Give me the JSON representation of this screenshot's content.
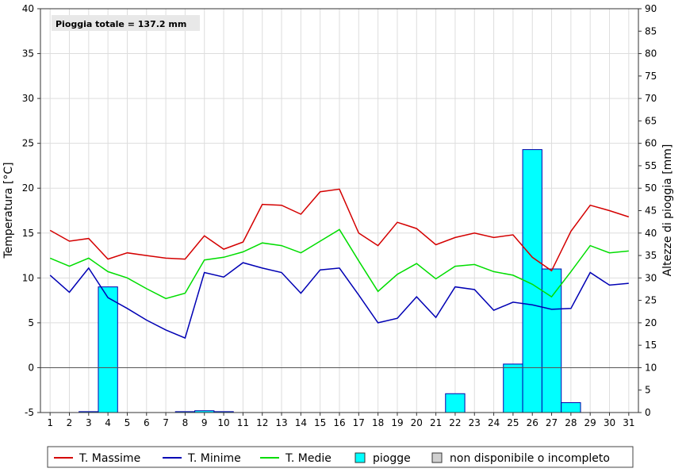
{
  "chart_data": {
    "type": "line",
    "x": [
      1,
      2,
      3,
      4,
      5,
      6,
      7,
      8,
      9,
      10,
      11,
      12,
      13,
      14,
      15,
      16,
      17,
      18,
      19,
      20,
      21,
      22,
      23,
      24,
      25,
      26,
      27,
      28,
      29,
      30,
      31
    ],
    "annotation": "Pioggia totale = 137.2 mm",
    "y_left": {
      "label": "Temperatura [°C]",
      "min": -5,
      "max": 40,
      "step": 5
    },
    "y_right": {
      "label": "Altezze di pioggia [mm]",
      "min": 0,
      "max": 90,
      "step": 5
    },
    "grid": true,
    "legend_position": "bottom",
    "series": [
      {
        "name": "T. Massime",
        "color": "#d40000",
        "axis": "left",
        "values": [
          15.3,
          14.1,
          14.4,
          12.1,
          12.8,
          12.5,
          12.2,
          12.1,
          14.7,
          13.2,
          14.0,
          18.2,
          18.1,
          17.1,
          19.6,
          19.9,
          15.0,
          13.6,
          16.2,
          15.5,
          13.7,
          14.5,
          15.0,
          14.5,
          14.8,
          12.3,
          10.8,
          15.2,
          18.1,
          17.5,
          16.8
        ]
      },
      {
        "name": "T. Minime",
        "color": "#0000b4",
        "axis": "left",
        "values": [
          10.3,
          8.4,
          11.1,
          7.8,
          6.6,
          5.3,
          4.2,
          3.3,
          10.6,
          10.1,
          11.7,
          11.1,
          10.6,
          8.3,
          10.9,
          11.1,
          8.1,
          5.0,
          5.5,
          7.9,
          5.6,
          9.0,
          8.7,
          6.4,
          7.3,
          7.0,
          6.5,
          6.6,
          10.6,
          9.2,
          9.4
        ]
      },
      {
        "name": "T. Medie",
        "color": "#00dd00",
        "axis": "left",
        "values": [
          12.2,
          11.3,
          12.2,
          10.7,
          10.0,
          8.8,
          7.7,
          8.3,
          12.0,
          12.3,
          12.9,
          13.9,
          13.6,
          12.8,
          14.1,
          15.4,
          11.9,
          8.5,
          10.4,
          11.6,
          9.9,
          11.3,
          11.5,
          10.7,
          10.3,
          9.3,
          7.9,
          10.7,
          13.6,
          12.8,
          13.0
        ]
      }
    ],
    "bars": {
      "name": "piogge",
      "color": "#00ffff",
      "axis": "right",
      "values": [
        0,
        0,
        0.2,
        28.0,
        0,
        0,
        0,
        0.2,
        0.4,
        0.2,
        0,
        0,
        0,
        0,
        0,
        0,
        0,
        0,
        0,
        0,
        0,
        4.2,
        0,
        0,
        10.8,
        58.6,
        32.0,
        2.2,
        0,
        0,
        0
      ]
    },
    "legend": [
      {
        "label": "T. Massime",
        "kind": "line",
        "color": "#d40000"
      },
      {
        "label": "T. Minime",
        "kind": "line",
        "color": "#0000b4"
      },
      {
        "label": "T. Medie",
        "kind": "line",
        "color": "#00dd00"
      },
      {
        "label": "piogge",
        "kind": "box",
        "color": "#00ffff"
      },
      {
        "label": "non disponibile o incompleto",
        "kind": "box",
        "color": "#d0d0d0"
      }
    ]
  }
}
